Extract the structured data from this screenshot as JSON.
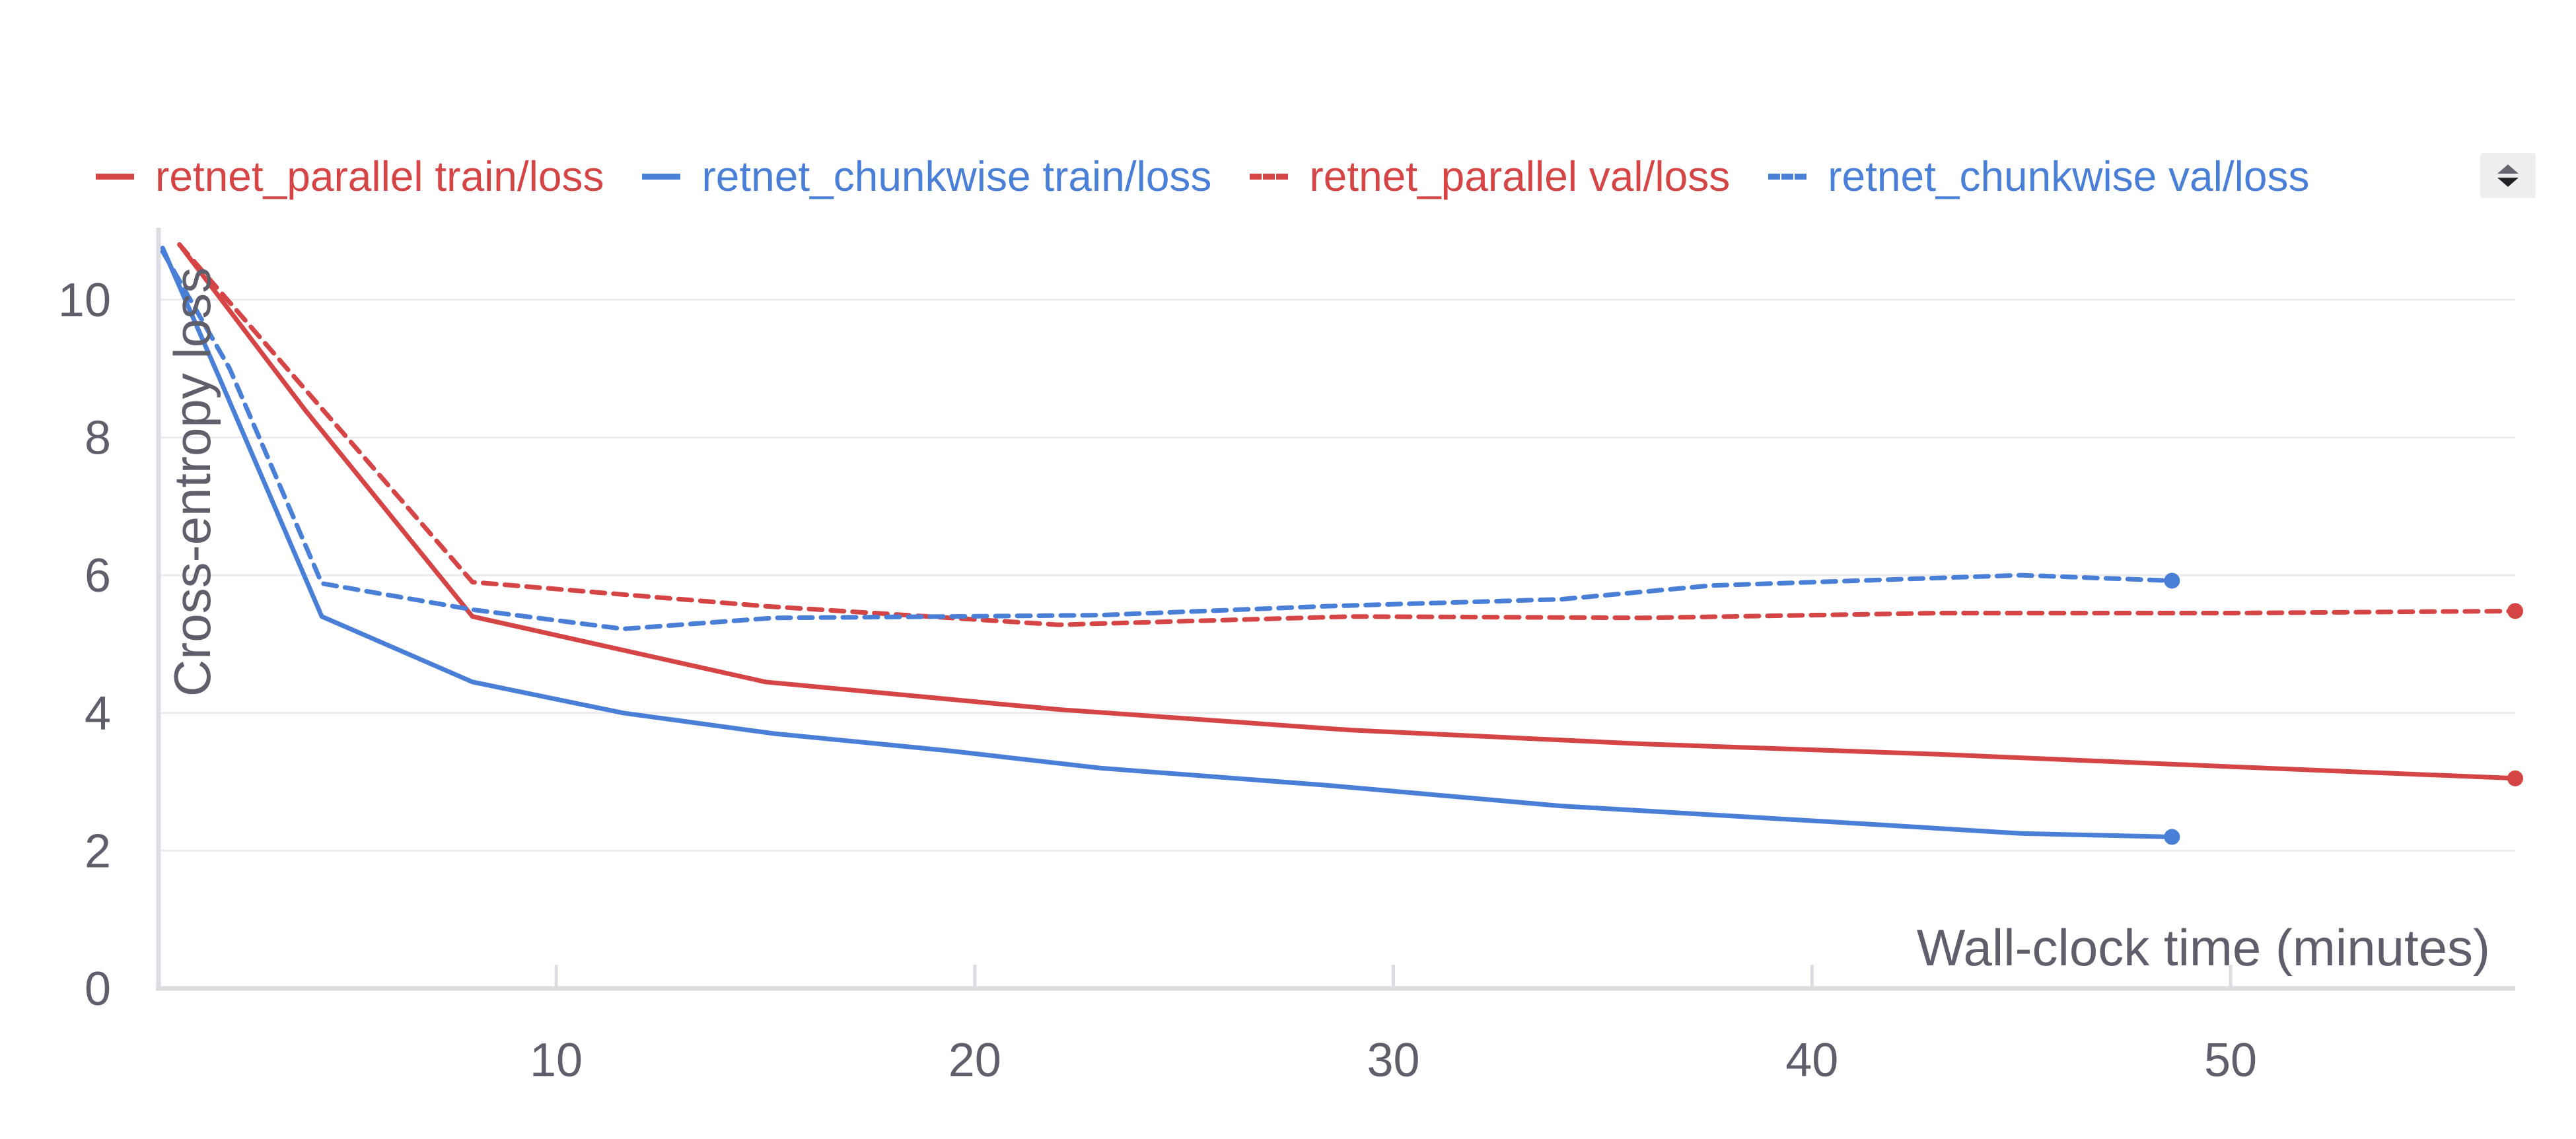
{
  "legend": {
    "items": [
      {
        "label": "retnet_parallel train/loss",
        "color": "#d64545",
        "dash": false
      },
      {
        "label": "retnet_chunkwise train/loss",
        "color": "#4a7fd8",
        "dash": false
      },
      {
        "label": "retnet_parallel val/loss",
        "color": "#d64545",
        "dash": true
      },
      {
        "label": "retnet_chunkwise val/loss",
        "color": "#4a7fd8",
        "dash": true
      }
    ],
    "scroll_icon": "scroll-up-down-icon"
  },
  "chart_data": {
    "type": "line",
    "title": "",
    "xlabel": "Wall-clock time (minutes)",
    "ylabel": "Cross-entropy loss",
    "xlim": [
      0.5,
      56.8
    ],
    "ylim": [
      0,
      10.9
    ],
    "xticks": [
      10,
      20,
      30,
      40,
      50
    ],
    "yticks": [
      0,
      2,
      4,
      6,
      8,
      10
    ],
    "grid": true,
    "legend_position": "top",
    "series": [
      {
        "name": "retnet_parallel train/loss",
        "color": "#d64545",
        "dash": false,
        "end_marker": true,
        "x": [
          1.0,
          4.0,
          8.0,
          15.0,
          22.0,
          29.0,
          36.0,
          43.0,
          50.0,
          56.8
        ],
        "y": [
          10.8,
          8.4,
          5.4,
          4.45,
          4.05,
          3.75,
          3.55,
          3.4,
          3.22,
          3.05
        ]
      },
      {
        "name": "retnet_chunkwise train/loss",
        "color": "#4a7fd8",
        "dash": false,
        "end_marker": true,
        "x": [
          0.6,
          2.0,
          4.4,
          8.0,
          11.6,
          15.2,
          19.4,
          23.0,
          28.4,
          34.0,
          41.0,
          45.0,
          48.6
        ],
        "y": [
          10.75,
          8.8,
          5.4,
          4.45,
          4.0,
          3.7,
          3.45,
          3.2,
          2.95,
          2.65,
          2.4,
          2.25,
          2.2
        ]
      },
      {
        "name": "retnet_parallel val/loss",
        "color": "#d64545",
        "dash": true,
        "end_marker": true,
        "x": [
          1.0,
          4.0,
          8.0,
          15.0,
          22.0,
          29.0,
          36.0,
          43.0,
          50.0,
          56.8
        ],
        "y": [
          10.8,
          8.7,
          5.9,
          5.55,
          5.28,
          5.4,
          5.38,
          5.45,
          5.45,
          5.48
        ]
      },
      {
        "name": "retnet_chunkwise val/loss",
        "color": "#4a7fd8",
        "dash": true,
        "end_marker": true,
        "x": [
          0.6,
          2.2,
          4.4,
          8.0,
          11.6,
          15.2,
          19.4,
          23.0,
          28.4,
          34.0,
          37.6,
          45.0,
          48.6
        ],
        "y": [
          10.7,
          9.0,
          5.88,
          5.5,
          5.22,
          5.38,
          5.4,
          5.42,
          5.55,
          5.65,
          5.85,
          6.0,
          5.92
        ]
      }
    ]
  }
}
